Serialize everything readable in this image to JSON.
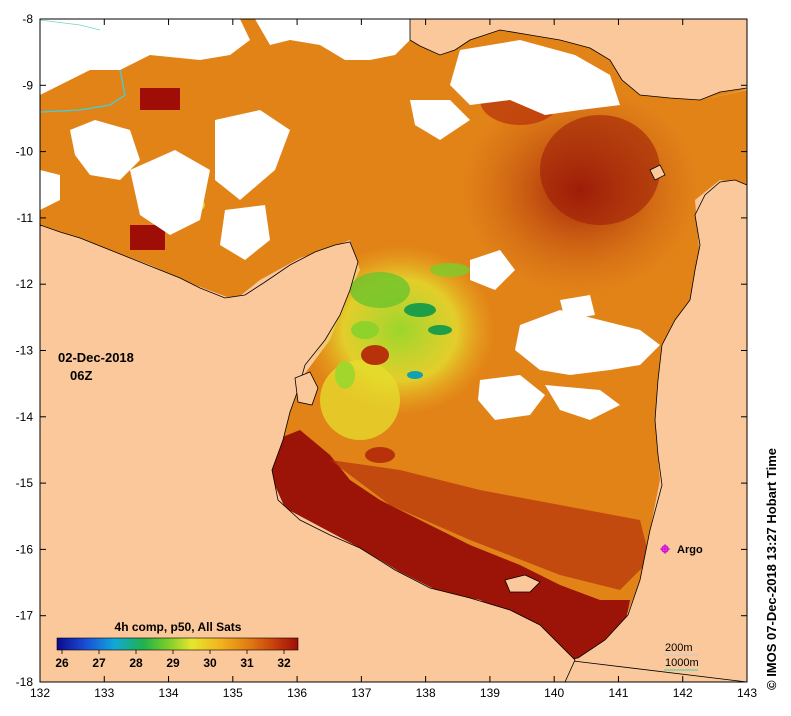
{
  "map": {
    "date_label": "02-Dec-2018",
    "time_label": "06Z",
    "colorbar_title": "4h comp, p50, All Sats",
    "colorbar_ticks": [
      "26",
      "27",
      "28",
      "29",
      "30",
      "31",
      "32"
    ],
    "colorbar_colors": [
      "#0a0a8c",
      "#1a4fd6",
      "#11a8d8",
      "#20b24a",
      "#7ccd2a",
      "#e6e62e",
      "#f2b21e",
      "#e07a12",
      "#c8400c",
      "#9e0e06"
    ],
    "x_ticks": [
      "132",
      "133",
      "134",
      "135",
      "136",
      "137",
      "138",
      "139",
      "140",
      "141",
      "142",
      "143"
    ],
    "y_ticks": [
      "-8",
      "-9",
      "-10",
      "-11",
      "-12",
      "-13",
      "-14",
      "-15",
      "-16",
      "-17",
      "-18"
    ],
    "argo_label": "Argo",
    "contour_200": "200m",
    "contour_1000": "1000m",
    "credit": "© IMOS 07-Dec-2018 13:27 Hobart Time",
    "land_color": "#fbc89b",
    "cloud_color": "#ffffff"
  }
}
